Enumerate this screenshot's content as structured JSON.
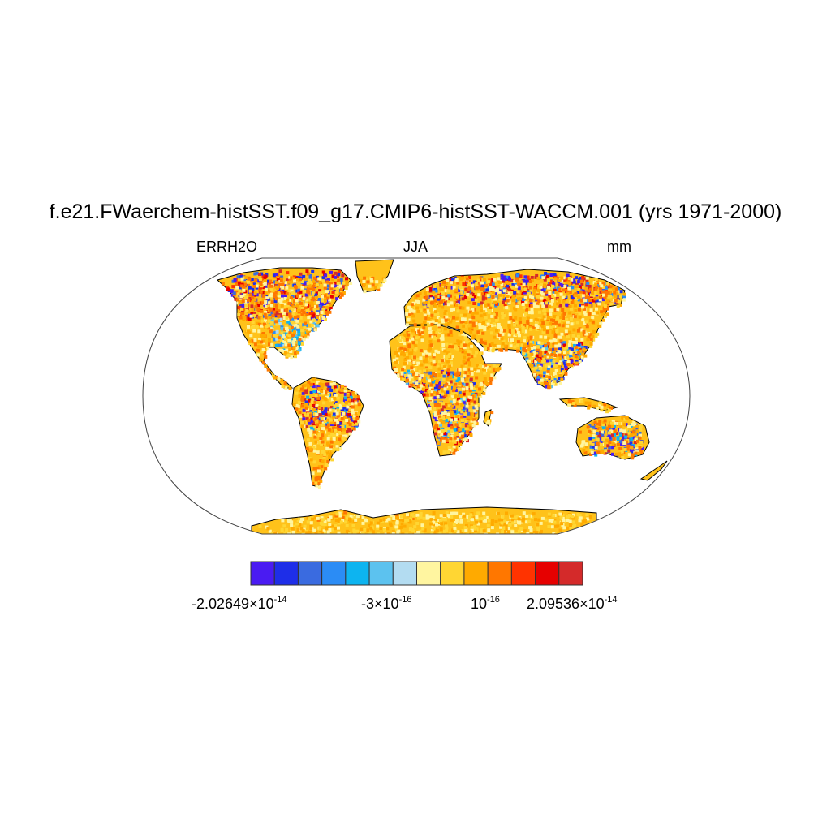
{
  "title": "f.e21.FWaerchem-histSST.f09_g17.CMIP6-histSST-WACCM.001 (yrs 1971-2000)",
  "left_label": "ERRH2O",
  "center_label": "JJA",
  "right_label": "mm",
  "colorbar": {
    "colors": [
      "#4a1bf2",
      "#1e2ee8",
      "#3a6be0",
      "#2b8cf5",
      "#0db4f0",
      "#5cc2ef",
      "#b3dcf1",
      "#fff5a0",
      "#ffd633",
      "#ffaa00",
      "#ff7700",
      "#ff3300",
      "#e60000",
      "#d42a2a"
    ],
    "labels": [
      {
        "mantissa": "-2.02649",
        "times": "×",
        "base": "10",
        "exp": "-14"
      },
      {
        "mantissa": "-3",
        "times": "×",
        "base": "10",
        "exp": "-16"
      },
      {
        "mantissa": "",
        "times": "",
        "base": "10",
        "exp": "-16"
      },
      {
        "mantissa": "2.09536",
        "times": "×",
        "base": "10",
        "exp": "-14"
      }
    ]
  },
  "map": {
    "projection": "robinson",
    "dominant_land_color": "#ffc21a",
    "ocean_color": "#ffffff"
  }
}
